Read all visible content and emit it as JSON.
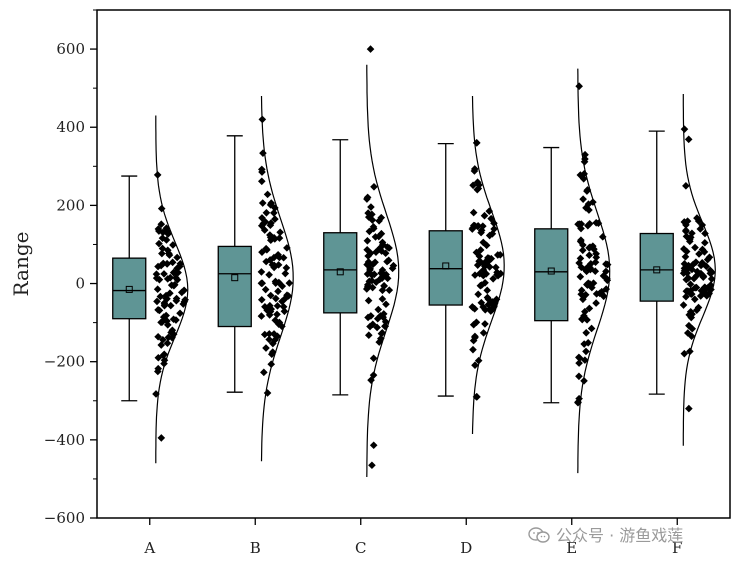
{
  "chart_data": {
    "type": "box",
    "title": "",
    "xlabel": "",
    "ylabel": "Range",
    "ylim": [
      -600,
      700
    ],
    "yticks": [
      -600,
      -400,
      -200,
      0,
      200,
      400,
      600
    ],
    "categories": [
      "A",
      "B",
      "C",
      "D",
      "E",
      "F"
    ],
    "box_color": "#5f9595",
    "point_color": "#000000",
    "boxes": [
      {
        "category": "A",
        "whisker_low": -300,
        "q1": -90,
        "median": -18,
        "q3": 65,
        "whisker_high": 275,
        "mean": -15,
        "min": -395,
        "max": 278,
        "curve_low": -460,
        "curve_high": 430,
        "sd": 120
      },
      {
        "category": "B",
        "whisker_low": -278,
        "q1": -110,
        "median": 25,
        "q3": 95,
        "whisker_high": 378,
        "mean": 15,
        "min": -280,
        "max": 420,
        "curve_low": -455,
        "curve_high": 480,
        "sd": 150
      },
      {
        "category": "C",
        "whisker_low": -285,
        "q1": -75,
        "median": 35,
        "q3": 130,
        "whisker_high": 368,
        "mean": 30,
        "min": -465,
        "max": 600,
        "curve_low": -495,
        "curve_high": 560,
        "sd": 150
      },
      {
        "category": "D",
        "whisker_low": -288,
        "q1": -55,
        "median": 38,
        "q3": 135,
        "whisker_high": 358,
        "mean": 45,
        "min": -290,
        "max": 360,
        "curve_low": -385,
        "curve_high": 480,
        "sd": 140
      },
      {
        "category": "E",
        "whisker_low": -305,
        "q1": -95,
        "median": 30,
        "q3": 140,
        "whisker_high": 348,
        "mean": 32,
        "min": -305,
        "max": 505,
        "curve_low": -485,
        "curve_high": 550,
        "sd": 150
      },
      {
        "category": "F",
        "whisker_low": -283,
        "q1": -45,
        "median": 35,
        "q3": 128,
        "whisker_high": 390,
        "mean": 35,
        "min": -320,
        "max": 395,
        "curve_low": -415,
        "curve_high": 485,
        "sd": 120
      }
    ],
    "points_per_group": 90
  },
  "watermark": {
    "text": "公众号 · 游鱼戏莲"
  }
}
